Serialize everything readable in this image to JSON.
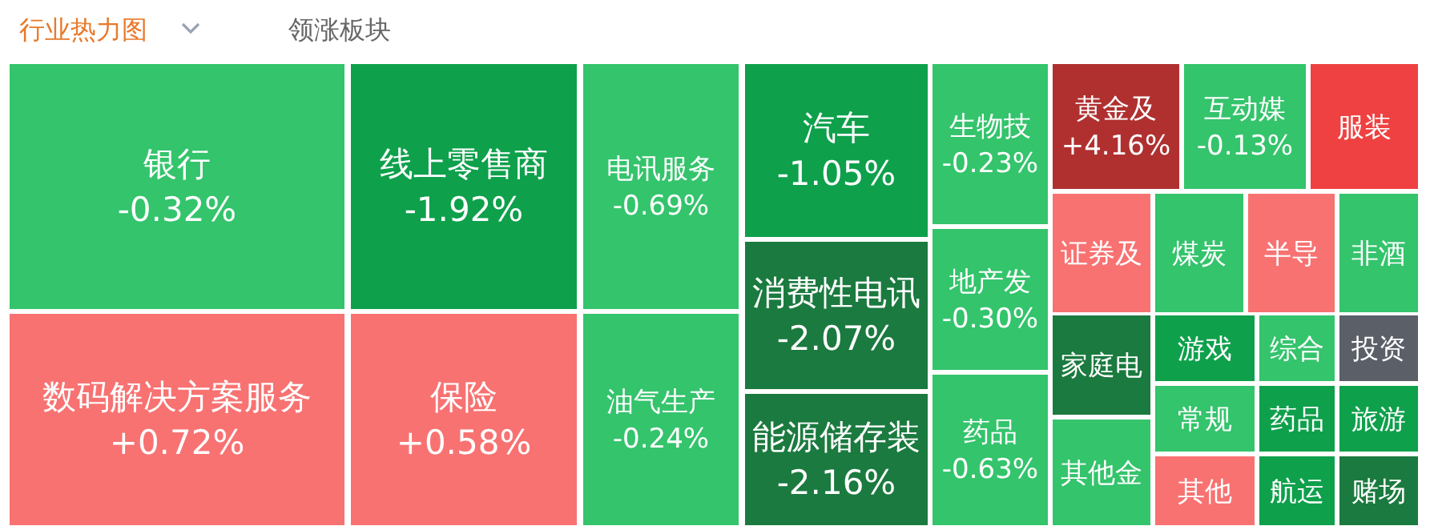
{
  "chart_data": {
    "type": "other",
    "title": "行业热力图",
    "subtitle": "领涨板块",
    "categories": [
      "银行",
      "线上零售商",
      "电讯服务",
      "数码解决方案服务",
      "保险",
      "油气生产",
      "汽车",
      "消费性电讯",
      "能源储存装",
      "生物技",
      "地产发",
      "药品",
      "黄金及",
      "互动媒",
      "服装",
      "证券及",
      "煤炭",
      "半导",
      "非酒",
      "家庭电",
      "其他金",
      "游戏",
      "综合",
      "投资",
      "常规",
      "药品",
      "旅游",
      "其他",
      "航运",
      "赌场"
    ],
    "values": [
      -0.32,
      -1.92,
      -0.69,
      0.72,
      0.58,
      -0.24,
      -1.05,
      -2.07,
      -2.16,
      -0.23,
      -0.3,
      -0.63,
      4.16,
      -0.13,
      null,
      null,
      null,
      null,
      null,
      null,
      null,
      null,
      null,
      null,
      null,
      null,
      null,
      null,
      null,
      null
    ],
    "value_labels": [
      "-0.32%",
      "-1.92%",
      "-0.69%",
      "+0.72%",
      "+0.58%",
      "-0.24%",
      "-1.05%",
      "-2.07%",
      "-2.16%",
      "-0.23%",
      "-0.30%",
      "-0.63%",
      "+4.16%",
      "-0.13%",
      null,
      null,
      null,
      null,
      null,
      null,
      null,
      null,
      null,
      null,
      null,
      null,
      null,
      null,
      null,
      null
    ],
    "colors": [
      "#34c46c",
      "#0ea04b",
      "#34c46c",
      "#f87272",
      "#f87272",
      "#34c46c",
      "#0ea04b",
      "#1b7a3f",
      "#1b7a3f",
      "#34c46c",
      "#34c46c",
      "#34c46c",
      "#b03030",
      "#34c46c",
      "#ef4141",
      "#f87272",
      "#34c46c",
      "#f87272",
      "#34c46c",
      "#1b7a3f",
      "#34c46c",
      "#0ea04b",
      "#34c46c",
      "#5a5f68",
      "#34c46c",
      "#0ea04b",
      "#0ea04b",
      "#f87272",
      "#0ea04b",
      "#1b7a3f"
    ]
  }
}
